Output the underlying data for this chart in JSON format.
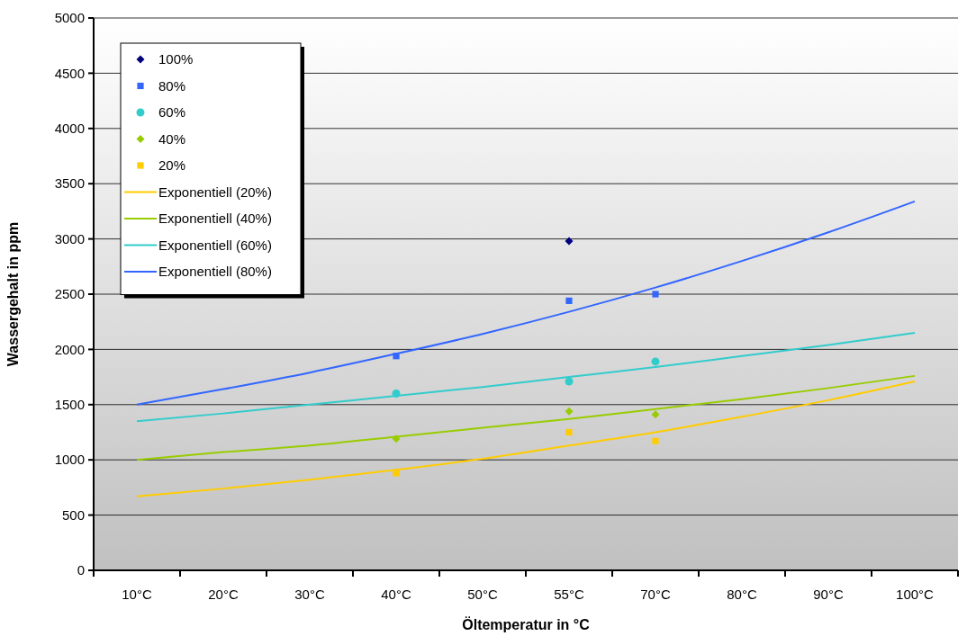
{
  "chart_data": {
    "type": "scatter",
    "xlabel": "Öltemperatur in °C",
    "ylabel": "Wassergehalt in ppm",
    "categories": [
      "10°C",
      "20°C",
      "30°C",
      "40°C",
      "50°C",
      "55°C",
      "70°C",
      "80°C",
      "90°C",
      "100°C"
    ],
    "ylim": [
      0,
      5000
    ],
    "yticks": [
      0,
      500,
      1000,
      1500,
      2000,
      2500,
      3000,
      3500,
      4000,
      4500,
      5000
    ],
    "grid": "y",
    "legend": "top left",
    "series": [
      {
        "name": "100%",
        "marker": "diamond",
        "color": "#000080",
        "values": [
          null,
          null,
          null,
          null,
          null,
          2980,
          null,
          null,
          null,
          null
        ]
      },
      {
        "name": "80%",
        "marker": "square",
        "color": "#3366ff",
        "values": [
          null,
          null,
          null,
          1940,
          null,
          2440,
          2500,
          null,
          null,
          null
        ]
      },
      {
        "name": "60%",
        "marker": "circle",
        "color": "#33cccc",
        "values": [
          null,
          null,
          null,
          1600,
          null,
          1710,
          1890,
          null,
          null,
          null
        ]
      },
      {
        "name": "40%",
        "marker": "diamond",
        "color": "#99cc00",
        "values": [
          null,
          null,
          null,
          1190,
          null,
          1440,
          1410,
          null,
          null,
          null
        ]
      },
      {
        "name": "20%",
        "marker": "square",
        "color": "#ffcc00",
        "values": [
          null,
          null,
          null,
          880,
          null,
          1250,
          1170,
          null,
          null,
          null
        ]
      },
      {
        "name": "Exponentiell (20%)",
        "type": "line",
        "color": "#ffcc00",
        "values": [
          670,
          740,
          820,
          910,
          1010,
          1130,
          1250,
          1390,
          1540,
          1710
        ]
      },
      {
        "name": "Exponentiell (40%)",
        "type": "line",
        "color": "#99cc00",
        "values": [
          1000,
          1070,
          1130,
          1210,
          1290,
          1370,
          1460,
          1550,
          1650,
          1760
        ]
      },
      {
        "name": "Exponentiell (60%)",
        "type": "line",
        "color": "#33cccc",
        "values": [
          1350,
          1420,
          1500,
          1580,
          1660,
          1750,
          1840,
          1940,
          2040,
          2150
        ]
      },
      {
        "name": "Exponentiell (80%)",
        "type": "line",
        "color": "#3366ff",
        "values": [
          1500,
          1640,
          1790,
          1960,
          2140,
          2340,
          2560,
          2800,
          3060,
          3340
        ]
      }
    ]
  }
}
